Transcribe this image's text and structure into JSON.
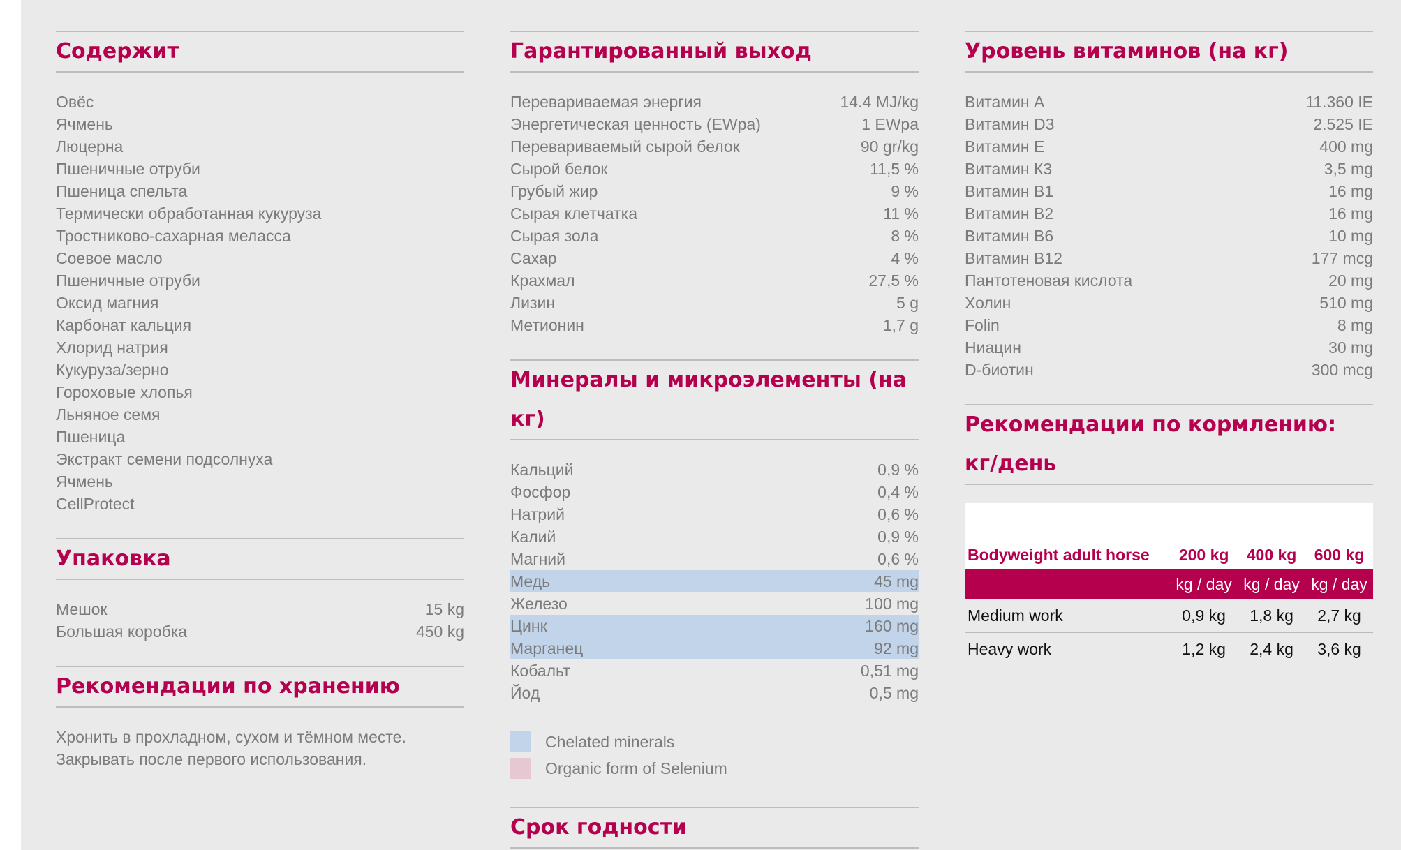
{
  "contains": {
    "title": "Содержит",
    "items": [
      "Овёс",
      "Ячмень",
      "Люцерна",
      "Пшеничные отруби",
      "Пшеница спельта",
      "Термически обработанная кукуруза",
      "Тростниково-сахарная меласса",
      "Соевое масло",
      "Пшеничные отруби",
      "Оксид магния",
      "Карбонат кальция",
      "Хлорид натрия",
      "Кукуруза/зерно",
      "Гороховые хлопья",
      "Льняное семя",
      "Пшеница",
      "Экстракт семени подсолнуха",
      "Ячмень",
      "CellProtect"
    ]
  },
  "packaging": {
    "title": "Упаковка",
    "rows": [
      {
        "label": "Мешок",
        "value": "15 kg"
      },
      {
        "label": "Большая коробка",
        "value": "450 kg"
      }
    ]
  },
  "storage": {
    "title": "Рекомендации по хранению",
    "lines": [
      "Хронить в прохладном, сухом и тёмном месте.",
      "Закрывать после первого использования."
    ]
  },
  "guaranteed": {
    "title": "Гарантированный выход",
    "rows": [
      {
        "label": "Перевариваемая энергия",
        "value": "14.4 MJ/kg"
      },
      {
        "label": "Энергетическая ценность (EWpa)",
        "value": "1 EWpa"
      },
      {
        "label": "Перевариваемый сырой белок",
        "value": "90 gr/kg"
      },
      {
        "label": "Сырой белок",
        "value": "11,5 %"
      },
      {
        "label": "Грубый жир",
        "value": "9 %"
      },
      {
        "label": "Сырая клетчатка",
        "value": "11 %"
      },
      {
        "label": "Сырая зола",
        "value": "8 %"
      },
      {
        "label": "Сахар",
        "value": "4 %"
      },
      {
        "label": "Крахмал",
        "value": "27,5 %"
      },
      {
        "label": "Лизин",
        "value": "5 g"
      },
      {
        "label": "Метионин",
        "value": "1,7 g"
      }
    ]
  },
  "minerals": {
    "title_line1": "Минералы и микроэлементы (на",
    "title_line2": "кг)",
    "rows": [
      {
        "label": "Кальций",
        "value": "0,9 %",
        "chelated": false
      },
      {
        "label": "Фосфор",
        "value": "0,4 %",
        "chelated": false
      },
      {
        "label": "Натрий",
        "value": "0,6 %",
        "chelated": false
      },
      {
        "label": "Калий",
        "value": "0,9 %",
        "chelated": false
      },
      {
        "label": "Магний",
        "value": "0,6 %",
        "chelated": false
      },
      {
        "label": "Медь",
        "value": "45 mg",
        "chelated": true
      },
      {
        "label": "Железо",
        "value": "100 mg",
        "chelated": false
      },
      {
        "label": "Цинк",
        "value": "160 mg",
        "chelated": true
      },
      {
        "label": "Марганец",
        "value": "92 mg",
        "chelated": true
      },
      {
        "label": "Кобальт",
        "value": "0,51 mg",
        "chelated": false
      },
      {
        "label": "Йод",
        "value": "0,5 mg",
        "chelated": false
      }
    ],
    "legend": [
      {
        "label": "Chelated minerals",
        "color": "#c2d4ea"
      },
      {
        "label": "Organic form of Selenium",
        "color": "#e6c8d2"
      }
    ]
  },
  "shelf_life": {
    "title": "Срок годности"
  },
  "vitamins": {
    "title": "Уровень витаминов (на кг)",
    "rows": [
      {
        "label": "Витамин А",
        "value": "11.360 IE"
      },
      {
        "label": "Витамин D3",
        "value": "2.525 IE"
      },
      {
        "label": "Витамин Е",
        "value": "400 mg"
      },
      {
        "label": "Витамин К3",
        "value": "3,5 mg"
      },
      {
        "label": "Витамин В1",
        "value": "16 mg"
      },
      {
        "label": "Витамин В2",
        "value": "16 mg"
      },
      {
        "label": "Витамин В6",
        "value": "10 mg"
      },
      {
        "label": "Витамин В12",
        "value": "177 mcg"
      },
      {
        "label": "Пантотеновая кислота",
        "value": "20 mg"
      },
      {
        "label": "Холин",
        "value": "510 mg"
      },
      {
        "label": "Folin",
        "value": "8 mg"
      },
      {
        "label": "Ниацин",
        "value": "30 mg"
      },
      {
        "label": "D-биотин",
        "value": "300 mcg"
      }
    ]
  },
  "feeding": {
    "title_line1": "Рекомендации по кормлению:",
    "title_line2": "кг/день",
    "head_label": "Bodyweight adult horse",
    "weights": [
      "200 kg",
      "400 kg",
      "600 kg"
    ],
    "unit": "kg / day",
    "rows": [
      {
        "label": "Medium work",
        "values": [
          "0,9 kg",
          "1,8 kg",
          "2,7 kg"
        ]
      },
      {
        "label": "Heavy work",
        "values": [
          "1,2 kg",
          "2,4 kg",
          "3,6 kg"
        ]
      }
    ]
  },
  "colors": {
    "accent": "#b5004e",
    "chelated": "#c2d4ea",
    "selenium": "#e6c8d2",
    "background": "#ebeaeb"
  }
}
